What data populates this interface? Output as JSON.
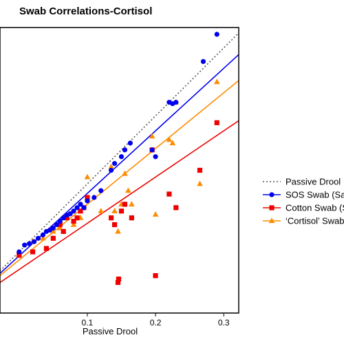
{
  "chart_data": {
    "type": "scatter",
    "title": "Swab Correlations-Cortisol",
    "xlabel": "Passive Drool",
    "ylabel": "",
    "xlim": [
      -0.028,
      0.322
    ],
    "ylim": [
      -0.09,
      0.33
    ],
    "xticks": [
      0.1,
      0.2,
      0.3
    ],
    "xtick_labels": [
      "0.1",
      "0.2",
      "0.3"
    ],
    "grid": false,
    "legend_position": "right",
    "reference_line": {
      "name": "Passive Drool",
      "color": "#555555",
      "style": "dotted",
      "slope": 1.0,
      "intercept": 0.0
    },
    "series": [
      {
        "name": "SOS Swab (SalivaBio)",
        "color": "#0000ee",
        "marker": "circle",
        "fit": {
          "slope": 0.92,
          "intercept": -0.006
        },
        "x": [
          0.0,
          0.008,
          0.015,
          0.022,
          0.028,
          0.035,
          0.04,
          0.045,
          0.05,
          0.055,
          0.06,
          0.065,
          0.07,
          0.075,
          0.08,
          0.085,
          0.09,
          0.095,
          0.1,
          0.11,
          0.12,
          0.135,
          0.14,
          0.15,
          0.155,
          0.163,
          0.195,
          0.2,
          0.22,
          0.225,
          0.23,
          0.27,
          0.29
        ],
        "y": [
          0.0,
          0.01,
          0.012,
          0.015,
          0.02,
          0.025,
          0.03,
          0.032,
          0.035,
          0.04,
          0.045,
          0.05,
          0.054,
          0.056,
          0.06,
          0.065,
          0.07,
          0.065,
          0.075,
          0.08,
          0.09,
          0.12,
          0.13,
          0.14,
          0.15,
          0.16,
          0.15,
          0.14,
          0.22,
          0.218,
          0.22,
          0.28,
          0.32
        ]
      },
      {
        "name": "Cotton Swab (Salivette)",
        "color": "#ee0000",
        "marker": "square",
        "fit": {
          "slope": 0.68,
          "intercept": -0.026
        },
        "x": [
          0.0,
          0.02,
          0.04,
          0.05,
          0.06,
          0.065,
          0.07,
          0.08,
          0.085,
          0.09,
          0.095,
          0.1,
          0.135,
          0.14,
          0.145,
          0.146,
          0.15,
          0.155,
          0.165,
          0.195,
          0.2,
          0.22,
          0.23,
          0.265,
          0.29
        ],
        "y": [
          -0.005,
          0.0,
          0.005,
          0.02,
          0.04,
          0.03,
          0.05,
          0.045,
          0.05,
          0.06,
          0.065,
          0.08,
          0.05,
          0.04,
          -0.045,
          -0.04,
          0.06,
          0.07,
          0.05,
          0.15,
          -0.035,
          0.085,
          0.065,
          0.12,
          0.19
        ]
      },
      {
        "name": "‘Cortisol’ Swab (SalivaBio)",
        "color": "#ff8c00",
        "marker": "triangle",
        "fit": {
          "slope": 0.82,
          "intercept": -0.012
        },
        "x": [
          0.0,
          0.02,
          0.035,
          0.05,
          0.06,
          0.07,
          0.08,
          0.09,
          0.1,
          0.12,
          0.135,
          0.14,
          0.145,
          0.15,
          0.155,
          0.16,
          0.165,
          0.195,
          0.2,
          0.22,
          0.225,
          0.23,
          0.265,
          0.29
        ],
        "y": [
          -0.005,
          0.015,
          0.02,
          0.03,
          0.035,
          0.05,
          0.04,
          0.05,
          0.11,
          0.06,
          0.125,
          0.06,
          0.03,
          0.07,
          0.115,
          0.09,
          0.07,
          0.17,
          0.055,
          0.165,
          0.16,
          0.22,
          0.1,
          0.25
        ]
      }
    ]
  }
}
